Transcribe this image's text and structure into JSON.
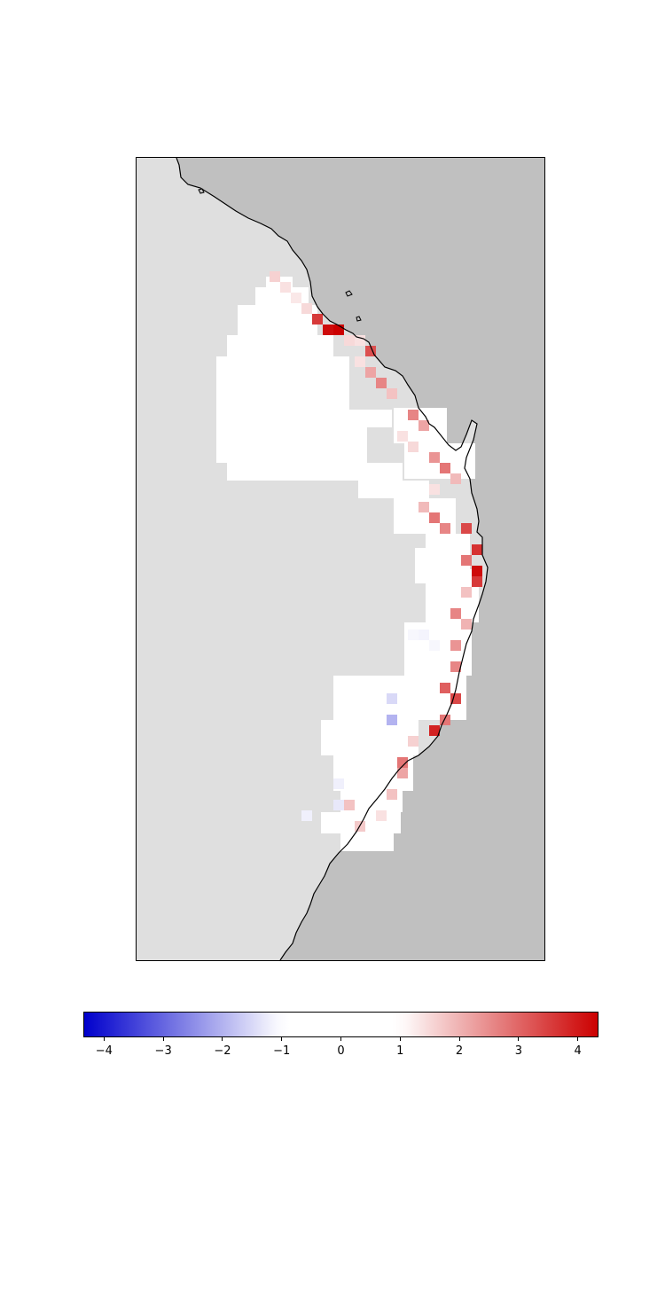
{
  "map": {
    "land_color": "#c0c0c0",
    "nodata_color": "#dfdfdf",
    "coast_color": "#000000",
    "anomaly_grid": [
      {
        "row": 0,
        "cells": [
          "0",
          "0",
          "1.4",
          "0"
        ]
      },
      {
        "row": 1,
        "cells": [
          "0",
          "0",
          "1.3",
          "1.5",
          "1.6",
          "0.5"
        ]
      },
      {
        "row": 2,
        "cells": [
          "0",
          "0",
          "0.5",
          "1.2",
          "1.4",
          "1.5",
          "0"
        ]
      },
      {
        "row": 3,
        "cells": [
          "0",
          "0",
          "0",
          "0",
          "1.4",
          "3.2",
          "4.0",
          "0"
        ]
      },
      {
        "row": 4,
        "cells": [
          "0",
          "0",
          "0",
          "0",
          "1.5",
          "4.2",
          "4.3",
          "1.6"
        ]
      },
      {
        "row": 5,
        "cells": [
          "0",
          "0",
          "0",
          "0",
          "0.5",
          "1.8",
          "3.2",
          "2.5",
          "4.1"
        ]
      },
      {
        "row": 6,
        "cells": [
          "0",
          "0",
          "0",
          "0",
          "0",
          "1.3",
          "1.4",
          "0.6"
        ]
      },
      {
        "row": 7,
        "cells": [
          "0",
          "0",
          "0",
          "0",
          "0",
          "1.6",
          "1.9",
          "0"
        ]
      },
      {
        "row": 8,
        "cells": [
          "0",
          "0",
          "0",
          "0",
          "0",
          "1.3",
          "2.4",
          "0"
        ]
      },
      {
        "row": 9,
        "cells": [
          "0",
          "0",
          "0",
          "0",
          "0",
          "1.3",
          "2.6",
          "0"
        ]
      }
    ]
  },
  "colorbar": {
    "colormap": "seismic-like (blue-white-red)",
    "vmin": -4.35,
    "vmax": 4.35,
    "ticks": [
      {
        "value": -4,
        "label": "−4"
      },
      {
        "value": -3,
        "label": "−3"
      },
      {
        "value": -2,
        "label": "−2"
      },
      {
        "value": -1,
        "label": "−1"
      },
      {
        "value": 0,
        "label": "0"
      },
      {
        "value": 1,
        "label": "1"
      },
      {
        "value": 2,
        "label": "2"
      },
      {
        "value": 3,
        "label": "3"
      },
      {
        "value": 4,
        "label": "4"
      }
    ],
    "low_color": "#0000cc",
    "high_color": "#cc0000"
  }
}
